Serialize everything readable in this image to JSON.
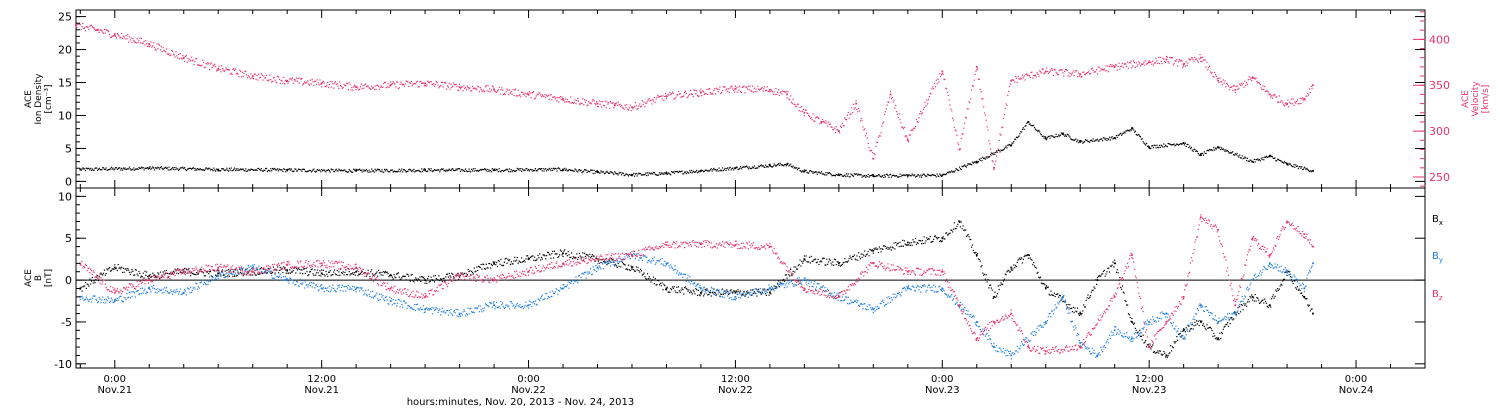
{
  "chart_data": [
    {
      "type": "scatter",
      "panel": "plasma",
      "xlabel": "hours:minutes, Nov. 20, 2013 - Nov. 24, 2013",
      "xlim": [
        "2013-11-20 21:45",
        "2013-11-24 04:00"
      ],
      "x_ticks": [
        {
          "time": "2013-11-21 00:00",
          "line1": "0:00",
          "line2": "Nov.21"
        },
        {
          "time": "2013-11-21 12:00",
          "line1": "12:00",
          "line2": "Nov.21"
        },
        {
          "time": "2013-11-22 00:00",
          "line1": "0:00",
          "line2": "Nov.22"
        },
        {
          "time": "2013-11-22 12:00",
          "line1": "12:00",
          "line2": "Nov.22"
        },
        {
          "time": "2013-11-23 00:00",
          "line1": "0:00",
          "line2": "Nov.23"
        },
        {
          "time": "2013-11-23 12:00",
          "line1": "12:00",
          "line2": "Nov.23"
        },
        {
          "time": "2013-11-24 00:00",
          "line1": "0:00",
          "line2": "Nov.24"
        }
      ],
      "left_axis": {
        "label_lines": [
          "ACE",
          "Ion Density",
          "[cm⁻³]"
        ],
        "ylim": [
          -1,
          26
        ],
        "ticks": [
          "0",
          "5",
          "10",
          "15",
          "20",
          "25"
        ],
        "color": "#000000"
      },
      "right_axis": {
        "label_lines": [
          "ACE",
          "Velocity",
          "[km/s]"
        ],
        "ylim": [
          238,
          432
        ],
        "ticks": [
          "250",
          "300",
          "350",
          "400"
        ],
        "color": "#e8336a"
      },
      "series": [
        {
          "axis": "left",
          "color": "#000000",
          "x": [
            "2013-11-20 22:00",
            "2013-11-21 02:00",
            "2013-11-21 06:00",
            "2013-11-21 10:00",
            "2013-11-21 14:00",
            "2013-11-21 18:00",
            "2013-11-21 22:00",
            "2013-11-22 02:00",
            "2013-11-22 04:00",
            "2013-11-22 06:00",
            "2013-11-22 08:00",
            "2013-11-22 10:00",
            "2013-11-22 12:00",
            "2013-11-22 14:00",
            "2013-11-22 15:00",
            "2013-11-22 16:00",
            "2013-11-22 18:00",
            "2013-11-22 20:00",
            "2013-11-22 22:00",
            "2013-11-23 00:00",
            "2013-11-23 02:00",
            "2013-11-23 04:00",
            "2013-11-23 05:00",
            "2013-11-23 06:00",
            "2013-11-23 07:00",
            "2013-11-23 08:00",
            "2013-11-23 10:00",
            "2013-11-23 11:00",
            "2013-11-23 12:00",
            "2013-11-23 14:00",
            "2013-11-23 15:00",
            "2013-11-23 16:00",
            "2013-11-23 18:00",
            "2013-11-23 19:00",
            "2013-11-23 20:00",
            "2013-11-23 21:30"
          ],
          "values": [
            1.8,
            2.0,
            1.8,
            1.7,
            1.6,
            1.7,
            1.7,
            1.8,
            1.4,
            1.0,
            1.2,
            1.6,
            2.0,
            2.4,
            2.6,
            1.5,
            1.0,
            0.8,
            0.9,
            0.9,
            3.0,
            5.5,
            9.0,
            6.5,
            7.2,
            6.0,
            6.6,
            8.0,
            5.2,
            5.8,
            4.0,
            5.2,
            3.0,
            3.8,
            2.6,
            1.6
          ]
        },
        {
          "axis": "right",
          "color": "#e8336a",
          "x": [
            "2013-11-20 21:45",
            "2013-11-20 23:00",
            "2013-11-21 00:00",
            "2013-11-21 02:00",
            "2013-11-21 04:00",
            "2013-11-21 06:00",
            "2013-11-21 08:00",
            "2013-11-21 10:00",
            "2013-11-21 12:00",
            "2013-11-21 14:00",
            "2013-11-21 16:00",
            "2013-11-21 18:00",
            "2013-11-21 20:00",
            "2013-11-21 22:00",
            "2013-11-22 00:00",
            "2013-11-22 02:00",
            "2013-11-22 04:00",
            "2013-11-22 05:00",
            "2013-11-22 06:00",
            "2013-11-22 08:00",
            "2013-11-22 10:00",
            "2013-11-22 12:00",
            "2013-11-22 14:00",
            "2013-11-22 15:00",
            "2013-11-22 16:00",
            "2013-11-22 17:00",
            "2013-11-22 18:00",
            "2013-11-22 19:00",
            "2013-11-22 20:00",
            "2013-11-22 21:00",
            "2013-11-22 22:00",
            "2013-11-23 00:00",
            "2013-11-23 01:00",
            "2013-11-23 02:00",
            "2013-11-23 03:00",
            "2013-11-23 04:00",
            "2013-11-23 06:00",
            "2013-11-23 08:00",
            "2013-11-23 10:00",
            "2013-11-23 12:00",
            "2013-11-23 13:00",
            "2013-11-23 14:00",
            "2013-11-23 15:00",
            "2013-11-23 16:00",
            "2013-11-23 17:00",
            "2013-11-23 18:00",
            "2013-11-23 19:00",
            "2013-11-23 20:00",
            "2013-11-23 21:00",
            "2013-11-23 21:30"
          ],
          "values": [
            415,
            410,
            405,
            395,
            380,
            368,
            360,
            355,
            352,
            348,
            350,
            352,
            348,
            345,
            340,
            335,
            330,
            328,
            326,
            338,
            342,
            346,
            345,
            340,
            320,
            310,
            300,
            330,
            270,
            340,
            290,
            365,
            280,
            370,
            260,
            355,
            365,
            362,
            370,
            375,
            378,
            373,
            380,
            355,
            345,
            358,
            340,
            330,
            335,
            350
          ]
        }
      ]
    },
    {
      "type": "scatter",
      "panel": "magnetic-field",
      "xlabel": "hours:minutes, Nov. 20, 2013 - Nov. 24, 2013",
      "xlim": [
        "2013-11-20 21:45",
        "2013-11-24 04:00"
      ],
      "left_axis": {
        "label_lines": [
          "ACE",
          "B",
          "[nT]"
        ],
        "ylim": [
          -10.5,
          11
        ],
        "ticks": [
          "-10",
          "-5",
          "0",
          "5",
          "10"
        ],
        "color": "#000000"
      },
      "zero_line": true,
      "series": [
        {
          "name": "Bx",
          "color": "#000000",
          "x": [
            "2013-11-20 22:00",
            "2013-11-21 00:00",
            "2013-11-21 02:00",
            "2013-11-21 04:00",
            "2013-11-21 06:00",
            "2013-11-21 08:00",
            "2013-11-21 10:00",
            "2013-11-21 12:00",
            "2013-11-21 14:00",
            "2013-11-21 16:00",
            "2013-11-21 18:00",
            "2013-11-21 20:00",
            "2013-11-21 22:00",
            "2013-11-22 00:00",
            "2013-11-22 02:00",
            "2013-11-22 04:00",
            "2013-11-22 06:00",
            "2013-11-22 08:00",
            "2013-11-22 10:00",
            "2013-11-22 12:00",
            "2013-11-22 14:00",
            "2013-11-22 16:00",
            "2013-11-22 18:00",
            "2013-11-22 20:00",
            "2013-11-22 22:00",
            "2013-11-23 00:00",
            "2013-11-23 01:00",
            "2013-11-23 02:00",
            "2013-11-23 03:00",
            "2013-11-23 04:00",
            "2013-11-23 05:00",
            "2013-11-23 06:00",
            "2013-11-23 08:00",
            "2013-11-23 09:00",
            "2013-11-23 10:00",
            "2013-11-23 11:00",
            "2013-11-23 12:00",
            "2013-11-23 13:00",
            "2013-11-23 14:00",
            "2013-11-23 15:00",
            "2013-11-23 16:00",
            "2013-11-23 17:00",
            "2013-11-23 18:00",
            "2013-11-23 19:00",
            "2013-11-23 20:00",
            "2013-11-23 21:00",
            "2013-11-23 21:30"
          ],
          "values": [
            -1.0,
            1.5,
            0.5,
            1.0,
            0.8,
            1.0,
            1.2,
            0.8,
            1.0,
            0.6,
            0.0,
            0.5,
            2.0,
            2.5,
            3.2,
            2.5,
            1.5,
            -1.0,
            -1.5,
            -1.5,
            -1.5,
            2.5,
            2.0,
            3.5,
            4.5,
            5.0,
            7.0,
            3.0,
            -2.0,
            1.5,
            3.0,
            -1.0,
            -4.0,
            0.0,
            2.0,
            -5.0,
            -8.0,
            -9.0,
            -6.0,
            -5.0,
            -7.0,
            -4.0,
            -2.0,
            -3.0,
            1.0,
            -2.0,
            -4.0
          ]
        },
        {
          "name": "By",
          "color": "#1f7fe0",
          "x": [
            "2013-11-20 22:00",
            "2013-11-21 00:00",
            "2013-11-21 02:00",
            "2013-11-21 04:00",
            "2013-11-21 06:00",
            "2013-11-21 08:00",
            "2013-11-21 10:00",
            "2013-11-21 12:00",
            "2013-11-21 14:00",
            "2013-11-21 16:00",
            "2013-11-21 18:00",
            "2013-11-21 20:00",
            "2013-11-21 22:00",
            "2013-11-22 00:00",
            "2013-11-22 02:00",
            "2013-11-22 04:00",
            "2013-11-22 06:00",
            "2013-11-22 08:00",
            "2013-11-22 10:00",
            "2013-11-22 12:00",
            "2013-11-22 14:00",
            "2013-11-22 16:00",
            "2013-11-22 18:00",
            "2013-11-22 20:00",
            "2013-11-22 22:00",
            "2013-11-23 00:00",
            "2013-11-23 01:00",
            "2013-11-23 02:00",
            "2013-11-23 03:00",
            "2013-11-23 04:00",
            "2013-11-23 06:00",
            "2013-11-23 07:00",
            "2013-11-23 08:00",
            "2013-11-23 09:00",
            "2013-11-23 10:00",
            "2013-11-23 11:00",
            "2013-11-23 12:00",
            "2013-11-23 13:00",
            "2013-11-23 14:00",
            "2013-11-23 15:00",
            "2013-11-23 16:00",
            "2013-11-23 17:00",
            "2013-11-23 18:00",
            "2013-11-23 19:00",
            "2013-11-23 20:00",
            "2013-11-23 21:00",
            "2013-11-23 21:30"
          ],
          "values": [
            -2.0,
            -2.5,
            -1.0,
            -1.5,
            0.5,
            1.5,
            0.0,
            -1.0,
            -1.0,
            -2.5,
            -3.5,
            -4.0,
            -3.0,
            -3.0,
            -1.0,
            1.5,
            3.0,
            2.0,
            -1.0,
            -2.0,
            -1.0,
            0.0,
            -2.0,
            -3.5,
            -1.0,
            -1.0,
            -3.0,
            -5.0,
            -8.0,
            -9.0,
            -5.0,
            -2.0,
            -7.5,
            -9.0,
            -6.0,
            -7.0,
            -5.0,
            -4.0,
            -7.0,
            -3.0,
            -5.0,
            -4.0,
            0.0,
            2.0,
            1.0,
            -1.0,
            2.0
          ]
        },
        {
          "name": "Bz",
          "color": "#e8336a",
          "x": [
            "2013-11-20 22:00",
            "2013-11-21 00:00",
            "2013-11-21 02:00",
            "2013-11-21 04:00",
            "2013-11-21 06:00",
            "2013-11-21 08:00",
            "2013-11-21 10:00",
            "2013-11-21 12:00",
            "2013-11-21 14:00",
            "2013-11-21 16:00",
            "2013-11-21 18:00",
            "2013-11-21 20:00",
            "2013-11-21 22:00",
            "2013-11-22 00:00",
            "2013-11-22 02:00",
            "2013-11-22 04:00",
            "2013-11-22 06:00",
            "2013-11-22 08:00",
            "2013-11-22 10:00",
            "2013-11-22 12:00",
            "2013-11-22 14:00",
            "2013-11-22 16:00",
            "2013-11-22 18:00",
            "2013-11-22 20:00",
            "2013-11-22 22:00",
            "2013-11-23 00:00",
            "2013-11-23 01:00",
            "2013-11-23 02:00",
            "2013-11-23 03:00",
            "2013-11-23 04:00",
            "2013-11-23 05:00",
            "2013-11-23 06:00",
            "2013-11-23 08:00",
            "2013-11-23 10:00",
            "2013-11-23 11:00",
            "2013-11-23 12:00",
            "2013-11-23 13:00",
            "2013-11-23 14:00",
            "2013-11-23 15:00",
            "2013-11-23 16:00",
            "2013-11-23 17:00",
            "2013-11-23 18:00",
            "2013-11-23 19:00",
            "2013-11-23 20:00",
            "2013-11-23 21:00",
            "2013-11-23 21:30"
          ],
          "values": [
            2.0,
            -1.5,
            0.0,
            1.0,
            1.5,
            1.0,
            1.8,
            2.0,
            1.5,
            -1.0,
            -2.0,
            0.5,
            0.0,
            1.0,
            2.0,
            2.5,
            3.0,
            4.2,
            4.3,
            4.2,
            4.0,
            -1.0,
            -2.0,
            2.0,
            1.0,
            1.0,
            -3.0,
            -7.0,
            -5.0,
            -4.0,
            -8.0,
            -8.5,
            -8.0,
            -2.0,
            3.0,
            -8.0,
            -5.0,
            -2.0,
            7.5,
            6.0,
            -3.0,
            5.0,
            3.0,
            7.0,
            5.5,
            4.0
          ]
        }
      ]
    }
  ],
  "legend": [
    {
      "base": "B",
      "sub": "x",
      "color": "#000000"
    },
    {
      "base": "B",
      "sub": "y",
      "color": "#1f7fe0"
    },
    {
      "base": "B",
      "sub": "z",
      "color": "#e8336a"
    }
  ]
}
